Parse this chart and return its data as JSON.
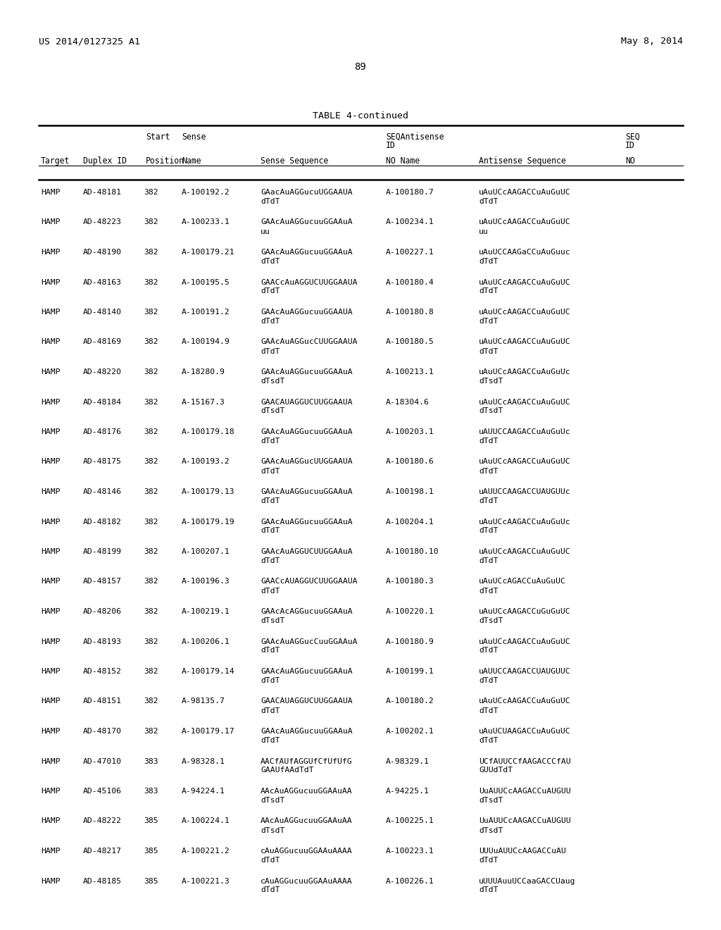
{
  "page_header_left": "US 2014/0127325 A1",
  "page_header_right": "May 8, 2014",
  "page_number": "89",
  "table_title": "TABLE 4-continued",
  "bg_color": "#ffffff",
  "text_color": "#000000",
  "rows": [
    [
      "HAMP",
      "AD-48181",
      "382",
      "A-100192.2",
      "GAacAuAGGucuUGGAAUA",
      "dTdT",
      "A-100180.7",
      "uAuUCcAAGACCuAuGuUC",
      "dTdT"
    ],
    [
      "HAMP",
      "AD-48223",
      "382",
      "A-100233.1",
      "GAAcAuAGGucuuGGAAuA",
      "uu",
      "A-100234.1",
      "uAuUCcAAGACCuAuGuUC",
      "uu"
    ],
    [
      "HAMP",
      "AD-48190",
      "382",
      "A-100179.21",
      "GAAcAuAGGucuuGGAAuA",
      "dTdT",
      "A-100227.1",
      "uAuUCCAAGaCCuAuGuuc",
      "dTdT"
    ],
    [
      "HAMP",
      "AD-48163",
      "382",
      "A-100195.5",
      "GAACcAuAGGUCUUGGAAUA",
      "dTdT",
      "A-100180.4",
      "uAuUCcAAGACCuAuGuUC",
      "dTdT"
    ],
    [
      "HAMP",
      "AD-48140",
      "382",
      "A-100191.2",
      "GAAcAuAGGucuuGGAAUA",
      "dTdT",
      "A-100180.8",
      "uAuUCcAAGACCuAuGuUC",
      "dTdT"
    ],
    [
      "HAMP",
      "AD-48169",
      "382",
      "A-100194.9",
      "GAAcAuAGGucCUUGGAAUA",
      "dTdT",
      "A-100180.5",
      "uAuUCcAAGACCuAuGuUC",
      "dTdT"
    ],
    [
      "HAMP",
      "AD-48220",
      "382",
      "A-18280.9",
      "GAAcAuAGGucuuGGAAuA",
      "dTsdT",
      "A-100213.1",
      "uAuUCcAAGACCuAuGuUc",
      "dTsdT"
    ],
    [
      "HAMP",
      "AD-48184",
      "382",
      "A-15167.3",
      "GAACAUAGGUCUUGGAAUA",
      "dTsdT",
      "A-18304.6",
      "uAuUCcAAGACCuAuGuUC",
      "dTsdT"
    ],
    [
      "HAMP",
      "AD-48176",
      "382",
      "A-100179.18",
      "GAAcAuAGGucuuGGAAuA",
      "dTdT",
      "A-100203.1",
      "uAUUCCAAGACCuAuGuUc",
      "dTdT"
    ],
    [
      "HAMP",
      "AD-48175",
      "382",
      "A-100193.2",
      "GAAcAuAGGucUUGGAAUA",
      "dTdT",
      "A-100180.6",
      "uAuUCcAAGACCuAuGuUC",
      "dTdT"
    ],
    [
      "HAMP",
      "AD-48146",
      "382",
      "A-100179.13",
      "GAAcAuAGGucuuGGAAuA",
      "dTdT",
      "A-100198.1",
      "uAUUCCAAGACCUAUGUUc",
      "dTdT"
    ],
    [
      "HAMP",
      "AD-48182",
      "382",
      "A-100179.19",
      "GAAcAuAGGucuuGGAAuA",
      "dTdT",
      "A-100204.1",
      "uAuUCcAAGACCuAuGuUc",
      "dTdT"
    ],
    [
      "HAMP",
      "AD-48199",
      "382",
      "A-100207.1",
      "GAAcAuAGGUCUUGGAAuA",
      "dTdT",
      "A-100180.10",
      "uAuUCcAAGACCuAuGuUC",
      "dTdT"
    ],
    [
      "HAMP",
      "AD-48157",
      "382",
      "A-100196.3",
      "GAACcAUAGGUCUUGGAAUA",
      "dTdT",
      "A-100180.3",
      "uAuUCcAGACCuAuGuUC",
      "dTdT"
    ],
    [
      "HAMP",
      "AD-48206",
      "382",
      "A-100219.1",
      "GAAcAcAGGucuuGGAAuA",
      "dTsdT",
      "A-100220.1",
      "uAuUCcAAGACCuGuGuUC",
      "dTsdT"
    ],
    [
      "HAMP",
      "AD-48193",
      "382",
      "A-100206.1",
      "GAAcAuAGGucCuuGGAAuA",
      "dTdT",
      "A-100180.9",
      "uAuUCcAAGACCuAuGuUC",
      "dTdT"
    ],
    [
      "HAMP",
      "AD-48152",
      "382",
      "A-100179.14",
      "GAAcAuAGGucuuGGAAuA",
      "dTdT",
      "A-100199.1",
      "uAUUCCAAGACCUAUGUUC",
      "dTdT"
    ],
    [
      "HAMP",
      "AD-48151",
      "382",
      "A-98135.7",
      "GAACAUAGGUCUUGGAAUA",
      "dTdT",
      "A-100180.2",
      "uAuUCcAAGACCuAuGuUC",
      "dTdT"
    ],
    [
      "HAMP",
      "AD-48170",
      "382",
      "A-100179.17",
      "GAAcAuAGGucuuGGAAuA",
      "dTdT",
      "A-100202.1",
      "uAuUCUAAGACCuAuGuUC",
      "dTdT"
    ],
    [
      "HAMP",
      "AD-47010",
      "383",
      "A-98328.1",
      "AACfAUfAGGUfCfUfUfG",
      "GAAUfAAdTdT",
      "A-98329.1",
      "UCfAUUCCfAAGACCCfAU",
      "GUUdTdT"
    ],
    [
      "HAMP",
      "AD-45106",
      "383",
      "A-94224.1",
      "AAcAuAGGucuuGGAAuAA",
      "dTsdT",
      "A-94225.1",
      "UuAUUCcAAGACCuAUGUU",
      "dTsdT"
    ],
    [
      "HAMP",
      "AD-48222",
      "385",
      "A-100224.1",
      "AAcAuAGGucuuGGAAuAA",
      "dTsdT",
      "A-100225.1",
      "UuAUUCcAAGACCuAUGUU",
      "dTsdT"
    ],
    [
      "HAMP",
      "AD-48217",
      "385",
      "A-100221.2",
      "cAuAGGucuuGGAAuAAAA",
      "dTdT",
      "A-100223.1",
      "UUUuAUUCcAAGACCuAU",
      "dTdT"
    ],
    [
      "HAMP",
      "AD-48185",
      "385",
      "A-100221.3",
      "cAuAGGucuuGGAAuAAAA",
      "dTdT",
      "A-100226.1",
      "uUUUAuuUCCaaGACCUaug",
      "dTdT"
    ]
  ]
}
